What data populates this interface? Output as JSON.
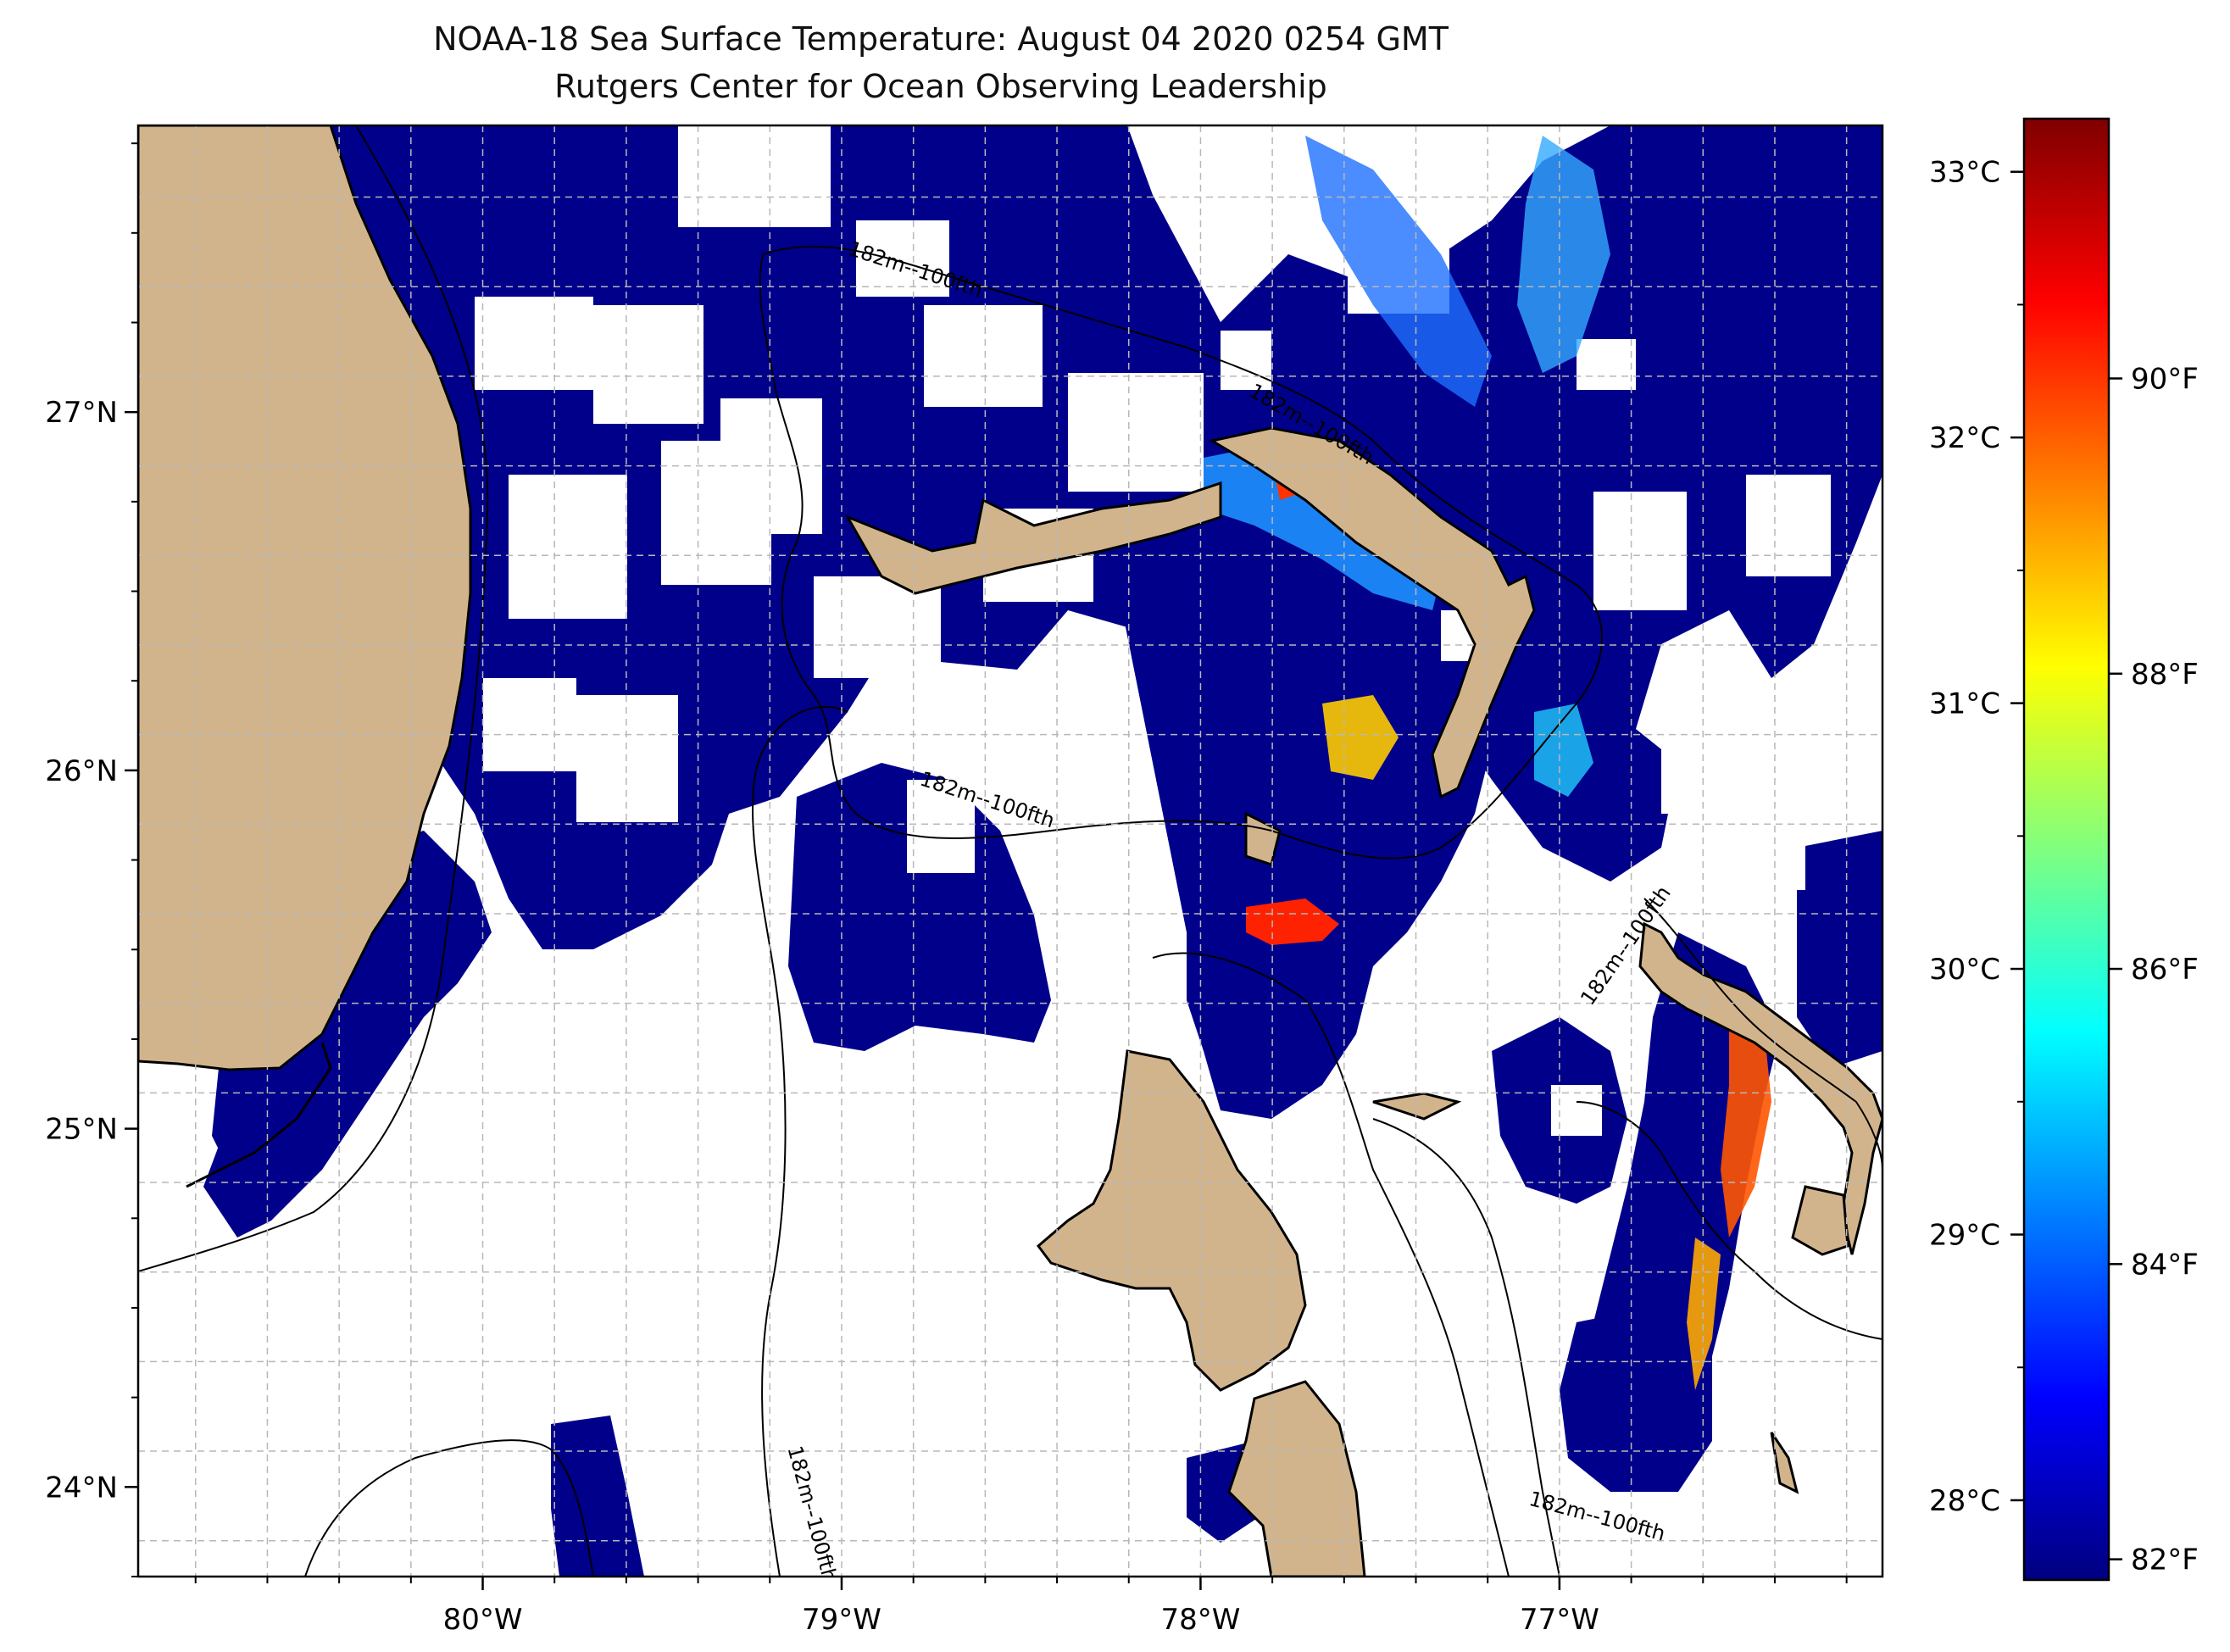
{
  "title": "NOAA-18 Sea Surface Temperature: August 04 2020 0254 GMT",
  "subtitle": "Rutgers Center for Ocean Observing Leadership",
  "colors": {
    "land": "#d2b48c",
    "cloud": "#ffffff",
    "water_base": "#00008b",
    "coast": "#000000",
    "grid": "#b0b0b0"
  },
  "map": {
    "extent": {
      "lon_min": -80.96,
      "lon_max": -76.1,
      "lat_min": 23.75,
      "lat_max": 27.8
    },
    "lon_ticks": [
      {
        "value": -80,
        "label": "80°W"
      },
      {
        "value": -79,
        "label": "79°W"
      },
      {
        "value": -78,
        "label": "78°W"
      },
      {
        "value": -77,
        "label": "77°W"
      }
    ],
    "lat_ticks": [
      {
        "value": 27,
        "label": "27°N"
      },
      {
        "value": 26,
        "label": "26°N"
      },
      {
        "value": 25,
        "label": "25°N"
      },
      {
        "value": 24,
        "label": "24°N"
      }
    ],
    "gridlines": true,
    "contour_labels": [
      {
        "text": "182m--100fth",
        "lon": -78.8,
        "lat": 27.38,
        "rot": 18
      },
      {
        "text": "182m--100fth",
        "lon": -77.7,
        "lat": 26.95,
        "rot": 30
      },
      {
        "text": "182m--100fth",
        "lon": -78.6,
        "lat": 25.9,
        "rot": 18
      },
      {
        "text": "182m--100fth",
        "lon": -76.8,
        "lat": 25.5,
        "rot": -55
      },
      {
        "text": "182m--100fth",
        "lon": -79.1,
        "lat": 23.92,
        "rot": 75
      },
      {
        "text": "182m--100fth",
        "lon": -76.9,
        "lat": 23.9,
        "rot": 15
      }
    ]
  },
  "colorbar": {
    "vmin": 27.7,
    "vmax": 33.2,
    "celsius_ticks": [
      {
        "value": 28,
        "label": "28°C"
      },
      {
        "value": 29,
        "label": "29°C"
      },
      {
        "value": 30,
        "label": "30°C"
      },
      {
        "value": 31,
        "label": "31°C"
      },
      {
        "value": 32,
        "label": "32°C"
      },
      {
        "value": 33,
        "label": "33°C"
      }
    ],
    "fahrenheit_ticks": [
      {
        "value": 82,
        "label": "82°F"
      },
      {
        "value": 84,
        "label": "84°F"
      },
      {
        "value": 86,
        "label": "86°F"
      },
      {
        "value": 88,
        "label": "88°F"
      },
      {
        "value": 90,
        "label": "90°F"
      }
    ],
    "colormap": [
      "#00007f",
      "#0000ff",
      "#007fff",
      "#00ffff",
      "#7fff7f",
      "#ffff00",
      "#ff7f00",
      "#ff0000",
      "#7f0000"
    ]
  }
}
